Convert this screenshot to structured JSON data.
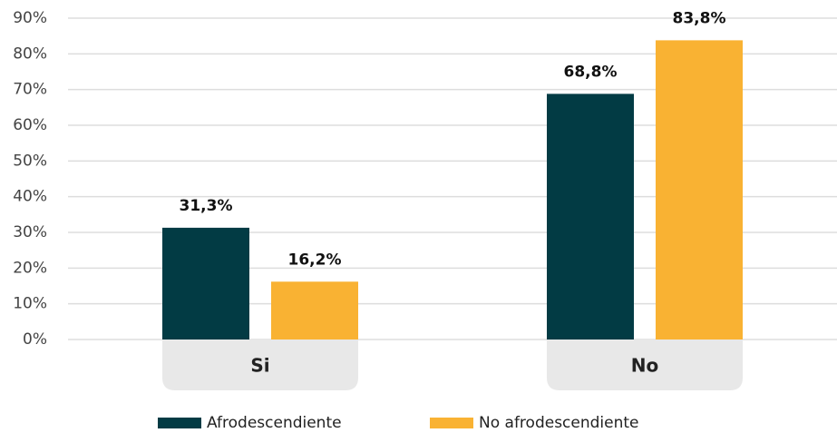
{
  "chart_data": {
    "type": "bar",
    "categories": [
      "Si",
      "No"
    ],
    "series": [
      {
        "name": "Afrodescendiente",
        "color": "#023b44",
        "values": [
          31.3,
          68.8
        ],
        "value_labels": [
          "31,3%",
          "68,8%"
        ]
      },
      {
        "name": "No afrodescendiente",
        "color": "#f9b233",
        "values": [
          16.2,
          83.8
        ],
        "value_labels": [
          "16,2%",
          "83,8%"
        ]
      }
    ],
    "ylim": [
      0,
      90
    ],
    "yticks": [
      {
        "value": 0,
        "label": "0%"
      },
      {
        "value": 10,
        "label": "10%"
      },
      {
        "value": 20,
        "label": "20%"
      },
      {
        "value": 30,
        "label": "30%"
      },
      {
        "value": 40,
        "label": "40%"
      },
      {
        "value": 50,
        "label": "50%"
      },
      {
        "value": 60,
        "label": "60%"
      },
      {
        "value": 70,
        "label": "70%"
      },
      {
        "value": 80,
        "label": "80%"
      },
      {
        "value": 90,
        "label": "90%"
      }
    ],
    "grid": true
  }
}
